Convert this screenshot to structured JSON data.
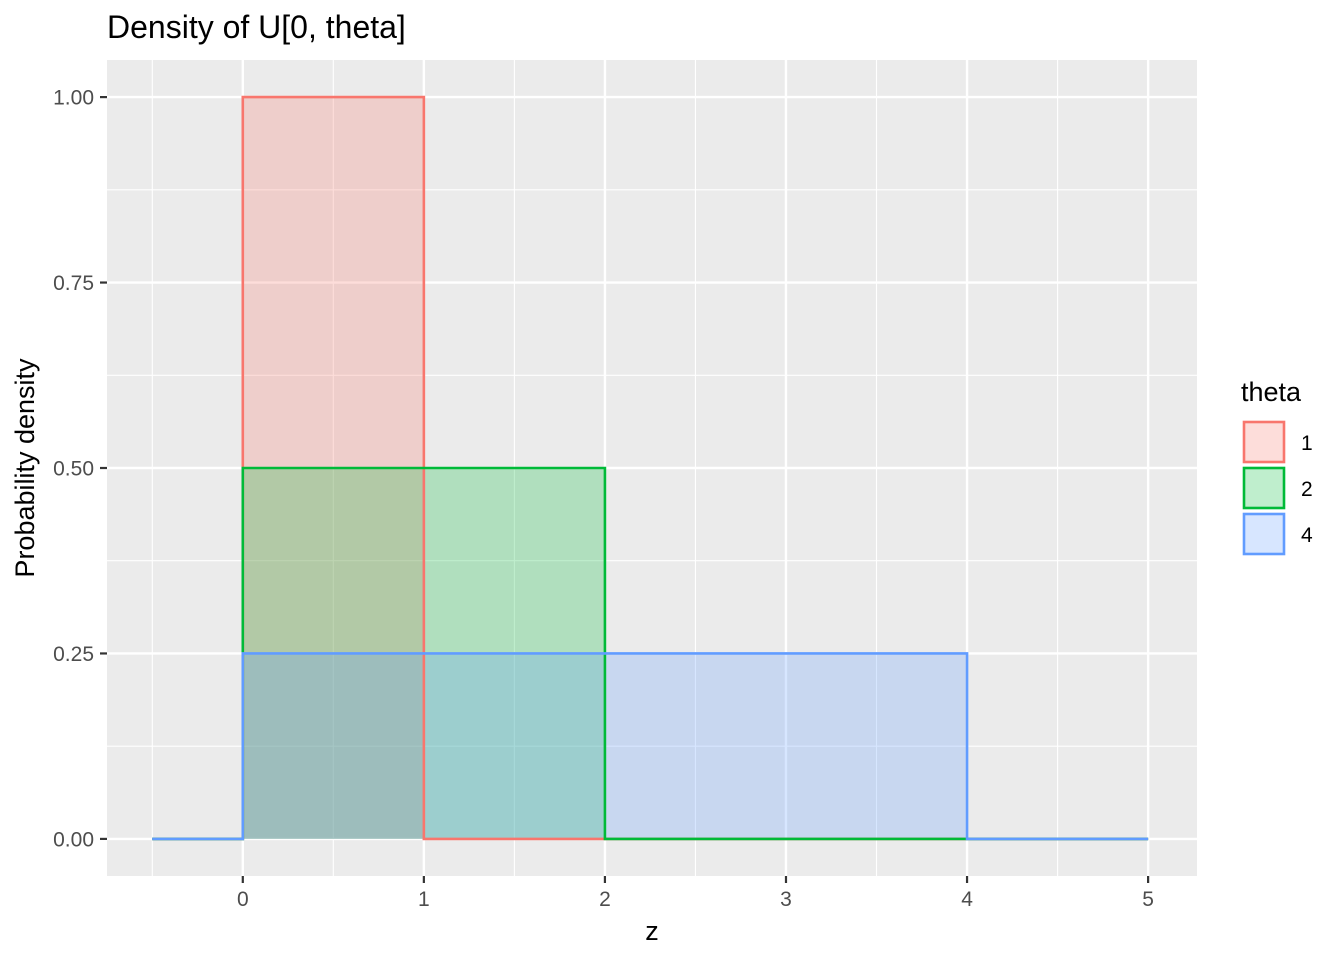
{
  "chart_data": {
    "type": "area",
    "title": "Density of U[0, theta]",
    "xlabel": "z",
    "ylabel": "Probability density",
    "xlim": [
      -0.75,
      5.27
    ],
    "ylim": [
      -0.05,
      1.05
    ],
    "xticks": [
      0,
      1,
      2,
      3,
      4,
      5
    ],
    "xtick_labels": [
      "0",
      "1",
      "2",
      "3",
      "4",
      "5"
    ],
    "yticks": [
      0,
      0.25,
      0.5,
      0.75,
      1.0
    ],
    "ytick_labels": [
      "0.00",
      "0.25",
      "0.50",
      "0.75",
      "1.00"
    ],
    "grid": true,
    "legend": {
      "title": "theta",
      "position": "right"
    },
    "series": [
      {
        "name": "1",
        "color": "#F8766D",
        "fill_opacity": 0.25,
        "x": [
          -0.5,
          0,
          0,
          1,
          1,
          5
        ],
        "y": [
          0,
          0,
          1,
          1,
          0,
          0
        ]
      },
      {
        "name": "2",
        "color": "#00BA38",
        "fill_opacity": 0.25,
        "x": [
          -0.5,
          0,
          0,
          2,
          2,
          5
        ],
        "y": [
          0,
          0,
          0.5,
          0.5,
          0,
          0
        ]
      },
      {
        "name": "4",
        "color": "#619CFF",
        "fill_opacity": 0.25,
        "x": [
          -0.5,
          0,
          0,
          4,
          4,
          5
        ],
        "y": [
          0,
          0,
          0.25,
          0.25,
          0,
          0
        ]
      }
    ]
  }
}
